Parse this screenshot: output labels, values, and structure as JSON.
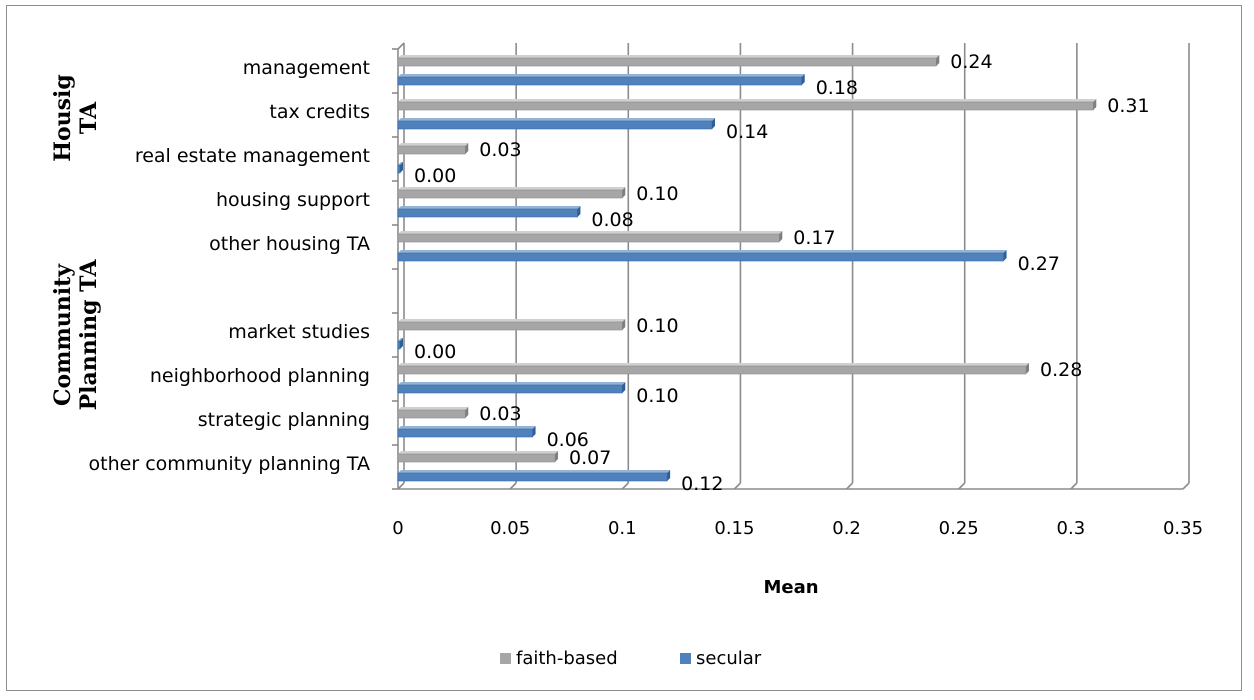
{
  "chart_data": {
    "type": "bar",
    "orientation": "horizontal",
    "xlabel": "Mean",
    "xlim": [
      0,
      0.35
    ],
    "xticks": [
      "0",
      "0.05",
      "0.1",
      "0.15",
      "0.2",
      "0.25",
      "0.3",
      "0.35"
    ],
    "grid": true,
    "legend_placement": "bottom",
    "groups": [
      {
        "label": "Housig TA",
        "categories": [
          "management",
          "tax credits",
          "real estate management",
          "housing support",
          "other housing TA"
        ]
      },
      {
        "label": "Community Planning TA",
        "categories": [
          "market studies",
          "neighborhood planning",
          "strategic planning",
          "other community planning TA"
        ]
      }
    ],
    "categories": [
      "management",
      "tax credits",
      "real estate management",
      "housing support",
      "other housing TA",
      "",
      "market studies",
      "neighborhood planning",
      "strategic planning",
      "other community planning TA"
    ],
    "series": [
      {
        "name": "faith-based",
        "color": "#a6a6a6",
        "values": [
          0.24,
          0.31,
          0.03,
          0.1,
          0.17,
          null,
          0.1,
          0.28,
          0.03,
          0.07
        ],
        "labels": [
          "0.24",
          "0.31",
          "0.03",
          "0.10",
          "0.17",
          "",
          "0.10",
          "0.28",
          "0.03",
          "0.07"
        ]
      },
      {
        "name": "secular",
        "color": "#4f81bd",
        "values": [
          0.18,
          0.14,
          0.0,
          0.08,
          0.27,
          null,
          0.0,
          0.1,
          0.06,
          0.12
        ],
        "labels": [
          "0.18",
          "0.14",
          "0.00",
          "0.08",
          "0.27",
          "",
          "0.00",
          "0.10",
          "0.06",
          "0.12"
        ]
      }
    ]
  }
}
